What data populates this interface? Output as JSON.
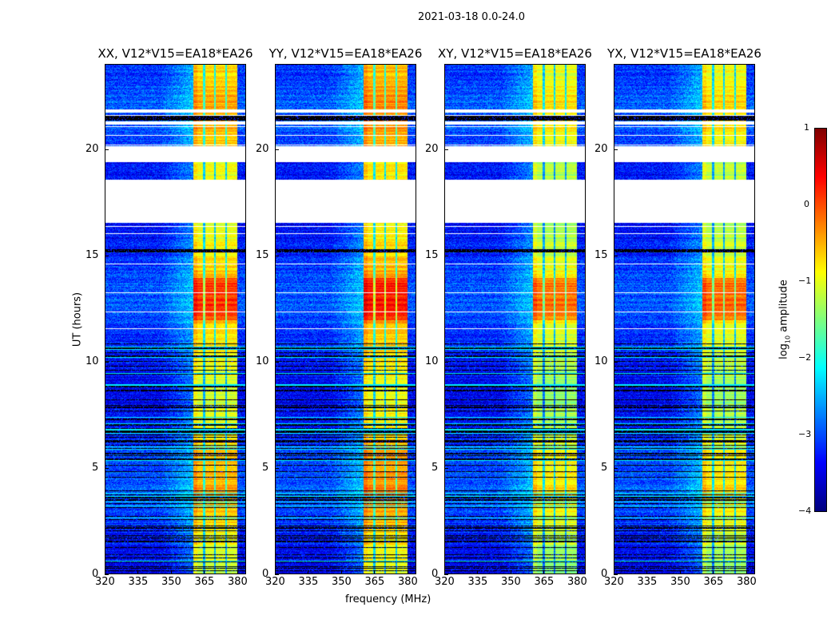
{
  "chart_data": {
    "type": "heatmap",
    "title": "2021-03-18 0.0-24.0",
    "xlabel": "frequency (MHz)",
    "ylabel": "UT (hours)",
    "xlim": [
      320,
      384
    ],
    "ylim": [
      0,
      24
    ],
    "xticks": [
      "320",
      "335",
      "350",
      "365",
      "380"
    ],
    "yticks": [
      "0",
      "5",
      "10",
      "15",
      "20"
    ],
    "panels": [
      {
        "title": "XX, V12*V15=EA18*EA26",
        "brightness": 0.0
      },
      {
        "title": "YY, V12*V15=EA18*EA26",
        "brightness": 0.15
      },
      {
        "title": "XY, V12*V15=EA18*EA26",
        "brightness": -0.3
      },
      {
        "title": "YX, V12*V15=EA18*EA26",
        "brightness": -0.25
      }
    ],
    "rfi_band_mhz": [
      360,
      380
    ],
    "blank_intervals_hours": [
      [
        16.6,
        18.6
      ],
      [
        19.45,
        20.2
      ],
      [
        21.2,
        21.35
      ],
      [
        21.75,
        21.9
      ]
    ],
    "flagged_black_intervals_hours": [
      [
        21.4,
        21.6
      ],
      [
        15.2,
        15.35
      ]
    ],
    "colorbar": {
      "label_main": "log",
      "label_sub": "10",
      "label_tail": " amplitude",
      "colormap": "jet",
      "range": [
        -4,
        1
      ],
      "ticks": [
        "1",
        "0",
        "−1",
        "−2",
        "−3",
        "−4"
      ]
    }
  }
}
